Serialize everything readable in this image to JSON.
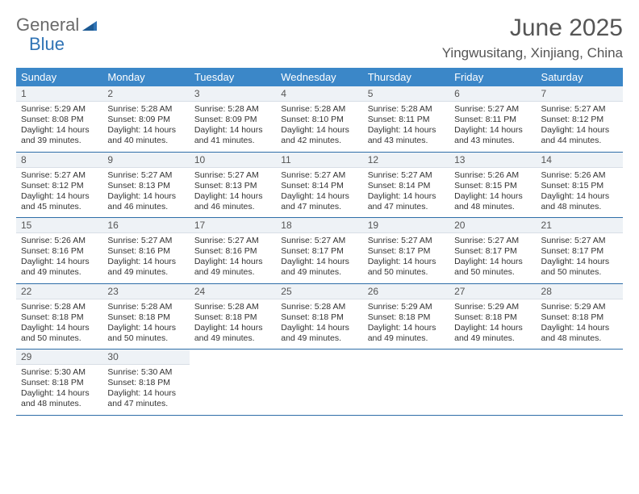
{
  "brand": {
    "part1": "General",
    "part2": "Blue"
  },
  "title": "June 2025",
  "subtitle": "Yingwusitang, Xinjiang, China",
  "colors": {
    "header_bg": "#3b87c8",
    "header_text": "#ffffff",
    "daynum_bg": "#eef2f6",
    "row_border": "#2f6ea8",
    "body_bg": "#ffffff",
    "text": "#333333",
    "title_color": "#555555",
    "logo_gray": "#6a6a6a",
    "logo_blue": "#2f73b5"
  },
  "weekdays": [
    "Sunday",
    "Monday",
    "Tuesday",
    "Wednesday",
    "Thursday",
    "Friday",
    "Saturday"
  ],
  "days": [
    {
      "n": 1,
      "sr": "5:29 AM",
      "ss": "8:08 PM",
      "dl": "14 hours and 39 minutes."
    },
    {
      "n": 2,
      "sr": "5:28 AM",
      "ss": "8:09 PM",
      "dl": "14 hours and 40 minutes."
    },
    {
      "n": 3,
      "sr": "5:28 AM",
      "ss": "8:09 PM",
      "dl": "14 hours and 41 minutes."
    },
    {
      "n": 4,
      "sr": "5:28 AM",
      "ss": "8:10 PM",
      "dl": "14 hours and 42 minutes."
    },
    {
      "n": 5,
      "sr": "5:28 AM",
      "ss": "8:11 PM",
      "dl": "14 hours and 43 minutes."
    },
    {
      "n": 6,
      "sr": "5:27 AM",
      "ss": "8:11 PM",
      "dl": "14 hours and 43 minutes."
    },
    {
      "n": 7,
      "sr": "5:27 AM",
      "ss": "8:12 PM",
      "dl": "14 hours and 44 minutes."
    },
    {
      "n": 8,
      "sr": "5:27 AM",
      "ss": "8:12 PM",
      "dl": "14 hours and 45 minutes."
    },
    {
      "n": 9,
      "sr": "5:27 AM",
      "ss": "8:13 PM",
      "dl": "14 hours and 46 minutes."
    },
    {
      "n": 10,
      "sr": "5:27 AM",
      "ss": "8:13 PM",
      "dl": "14 hours and 46 minutes."
    },
    {
      "n": 11,
      "sr": "5:27 AM",
      "ss": "8:14 PM",
      "dl": "14 hours and 47 minutes."
    },
    {
      "n": 12,
      "sr": "5:27 AM",
      "ss": "8:14 PM",
      "dl": "14 hours and 47 minutes."
    },
    {
      "n": 13,
      "sr": "5:26 AM",
      "ss": "8:15 PM",
      "dl": "14 hours and 48 minutes."
    },
    {
      "n": 14,
      "sr": "5:26 AM",
      "ss": "8:15 PM",
      "dl": "14 hours and 48 minutes."
    },
    {
      "n": 15,
      "sr": "5:26 AM",
      "ss": "8:16 PM",
      "dl": "14 hours and 49 minutes."
    },
    {
      "n": 16,
      "sr": "5:27 AM",
      "ss": "8:16 PM",
      "dl": "14 hours and 49 minutes."
    },
    {
      "n": 17,
      "sr": "5:27 AM",
      "ss": "8:16 PM",
      "dl": "14 hours and 49 minutes."
    },
    {
      "n": 18,
      "sr": "5:27 AM",
      "ss": "8:17 PM",
      "dl": "14 hours and 49 minutes."
    },
    {
      "n": 19,
      "sr": "5:27 AM",
      "ss": "8:17 PM",
      "dl": "14 hours and 50 minutes."
    },
    {
      "n": 20,
      "sr": "5:27 AM",
      "ss": "8:17 PM",
      "dl": "14 hours and 50 minutes."
    },
    {
      "n": 21,
      "sr": "5:27 AM",
      "ss": "8:17 PM",
      "dl": "14 hours and 50 minutes."
    },
    {
      "n": 22,
      "sr": "5:28 AM",
      "ss": "8:18 PM",
      "dl": "14 hours and 50 minutes."
    },
    {
      "n": 23,
      "sr": "5:28 AM",
      "ss": "8:18 PM",
      "dl": "14 hours and 50 minutes."
    },
    {
      "n": 24,
      "sr": "5:28 AM",
      "ss": "8:18 PM",
      "dl": "14 hours and 49 minutes."
    },
    {
      "n": 25,
      "sr": "5:28 AM",
      "ss": "8:18 PM",
      "dl": "14 hours and 49 minutes."
    },
    {
      "n": 26,
      "sr": "5:29 AM",
      "ss": "8:18 PM",
      "dl": "14 hours and 49 minutes."
    },
    {
      "n": 27,
      "sr": "5:29 AM",
      "ss": "8:18 PM",
      "dl": "14 hours and 49 minutes."
    },
    {
      "n": 28,
      "sr": "5:29 AM",
      "ss": "8:18 PM",
      "dl": "14 hours and 48 minutes."
    },
    {
      "n": 29,
      "sr": "5:30 AM",
      "ss": "8:18 PM",
      "dl": "14 hours and 48 minutes."
    },
    {
      "n": 30,
      "sr": "5:30 AM",
      "ss": "8:18 PM",
      "dl": "14 hours and 47 minutes."
    }
  ],
  "labels": {
    "sunrise": "Sunrise:",
    "sunset": "Sunset:",
    "daylight": "Daylight:"
  },
  "layout": {
    "first_weekday_offset": 0,
    "rows": 5,
    "cols": 7
  }
}
